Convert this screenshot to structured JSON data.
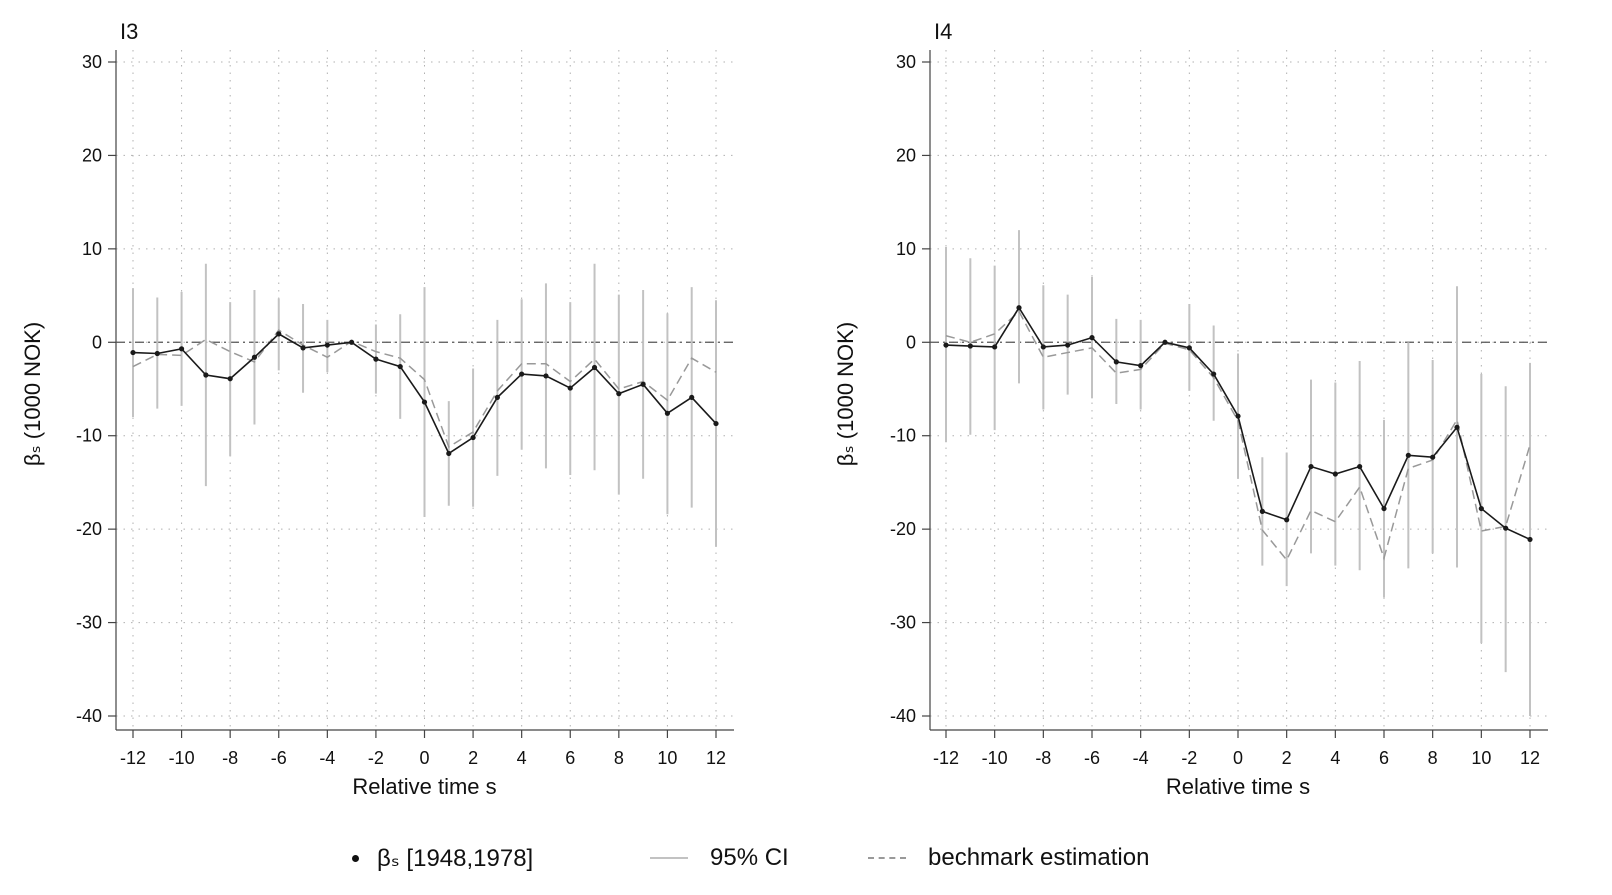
{
  "legend": {
    "point_label": "βₛ [1948,1978]",
    "ci_label": "95% CI",
    "benchmark_label": "bechmark estimation"
  },
  "colors": {
    "estimate": "#1a1a1a",
    "ci": "#c2c2c2",
    "benchmark": "#999999",
    "grid": "#b0b0b0",
    "axis": "#444444"
  },
  "chart_data": [
    {
      "type": "line",
      "title": "I3",
      "xlabel": "Relative time s",
      "ylabel": "βₛ (1000 NOK)",
      "xlim": [
        -12,
        12
      ],
      "ylim": [
        -40,
        30
      ],
      "xticks": [
        -12,
        -10,
        -8,
        -6,
        -4,
        -2,
        0,
        2,
        4,
        6,
        8,
        10,
        12
      ],
      "yticks": [
        30,
        20,
        10,
        0,
        -10,
        -20,
        -30,
        -40
      ],
      "reference_line": 0,
      "x": [
        -12,
        -11,
        -10,
        -9,
        -8,
        -7,
        -6,
        -5,
        -4,
        -3,
        -2,
        -1,
        0,
        1,
        2,
        3,
        4,
        5,
        6,
        7,
        8,
        9,
        10,
        11,
        12
      ],
      "series": [
        {
          "name": "βₛ [1948,1978]",
          "values": [
            -1.1,
            -1.2,
            -0.7,
            -3.5,
            -3.9,
            -1.6,
            0.9,
            -0.6,
            -0.3,
            0.0,
            -1.8,
            -2.6,
            -6.4,
            -11.9,
            -10.2,
            -5.9,
            -3.4,
            -3.6,
            -4.9,
            -2.7,
            -5.5,
            -4.5,
            -7.6,
            -5.9,
            -8.7
          ]
        },
        {
          "name": "bechmark estimation",
          "values": [
            -2.6,
            -1.3,
            -1.4,
            0.3,
            -1.0,
            -2.1,
            1.3,
            -0.3,
            -1.6,
            0.1,
            -1.0,
            -1.7,
            -4.0,
            -11.2,
            -9.6,
            -5.2,
            -2.3,
            -2.3,
            -4.2,
            -1.8,
            -5.0,
            -4.2,
            -6.2,
            -1.7,
            -3.2
          ]
        }
      ],
      "ci_lower": [
        -8.0,
        -7.1,
        -6.8,
        -15.4,
        -12.2,
        -8.8,
        -3.0,
        -5.4,
        -3.2,
        0.0,
        -5.5,
        -8.2,
        -18.7,
        -17.5,
        -17.6,
        -14.3,
        -11.5,
        -13.5,
        -14.2,
        -13.7,
        -16.3,
        -14.6,
        -18.4,
        -17.7,
        -21.9
      ],
      "ci_upper": [
        5.8,
        4.8,
        5.4,
        8.4,
        4.3,
        5.6,
        4.7,
        4.1,
        2.4,
        0.0,
        1.9,
        3.0,
        5.9,
        -6.3,
        -2.8,
        2.4,
        4.6,
        6.3,
        4.3,
        8.4,
        5.1,
        5.6,
        3.1,
        5.9,
        4.5
      ]
    },
    {
      "type": "line",
      "title": "I4",
      "xlabel": "Relative time s",
      "ylabel": "βₛ (1000 NOK)",
      "xlim": [
        -12,
        12
      ],
      "ylim": [
        -40,
        30
      ],
      "xticks": [
        -12,
        -10,
        -8,
        -6,
        -4,
        -2,
        0,
        2,
        4,
        6,
        8,
        10,
        12
      ],
      "yticks": [
        30,
        20,
        10,
        0,
        -10,
        -20,
        -30,
        -40
      ],
      "reference_line": 0,
      "x": [
        -12,
        -11,
        -10,
        -9,
        -8,
        -7,
        -6,
        -5,
        -4,
        -3,
        -2,
        -1,
        0,
        1,
        2,
        3,
        4,
        5,
        6,
        7,
        8,
        9,
        10,
        11,
        12
      ],
      "series": [
        {
          "name": "βₛ [1948,1978]",
          "values": [
            -0.3,
            -0.4,
            -0.5,
            3.7,
            -0.5,
            -0.3,
            0.5,
            -2.1,
            -2.5,
            0.0,
            -0.6,
            -3.4,
            -7.9,
            -18.1,
            -19.0,
            -13.3,
            -14.1,
            -13.3,
            -17.8,
            -12.1,
            -12.3,
            -9.1,
            -17.8,
            -19.9,
            -21.1
          ]
        },
        {
          "name": "bechmark estimation",
          "values": [
            0.7,
            0.0,
            0.9,
            3.3,
            -1.6,
            -1.1,
            -0.6,
            -3.3,
            -2.9,
            -0.1,
            -0.8,
            -3.8,
            -8.4,
            -20.1,
            -23.3,
            -18.0,
            -19.2,
            -15.5,
            -23.1,
            -13.5,
            -12.6,
            -8.3,
            -20.2,
            -19.7,
            -11.0
          ]
        }
      ],
      "ci_lower": [
        -10.7,
        -9.9,
        -9.4,
        -4.4,
        -7.2,
        -5.6,
        -6.0,
        -6.6,
        -7.2,
        0.0,
        -5.2,
        -8.4,
        -14.6,
        -23.9,
        -26.1,
        -22.6,
        -23.9,
        -24.4,
        -27.3,
        -24.2,
        -22.6,
        -24.1,
        -32.2,
        -35.3,
        -40.0
      ],
      "ci_upper": [
        10.2,
        9.0,
        8.2,
        12.0,
        6.1,
        5.1,
        7.0,
        2.5,
        2.4,
        0.0,
        4.1,
        1.8,
        -1.2,
        -12.3,
        -11.8,
        -4.0,
        -4.3,
        -2.0,
        -8.3,
        0.0,
        -1.9,
        6.0,
        -3.4,
        -4.7,
        -2.2
      ]
    }
  ]
}
